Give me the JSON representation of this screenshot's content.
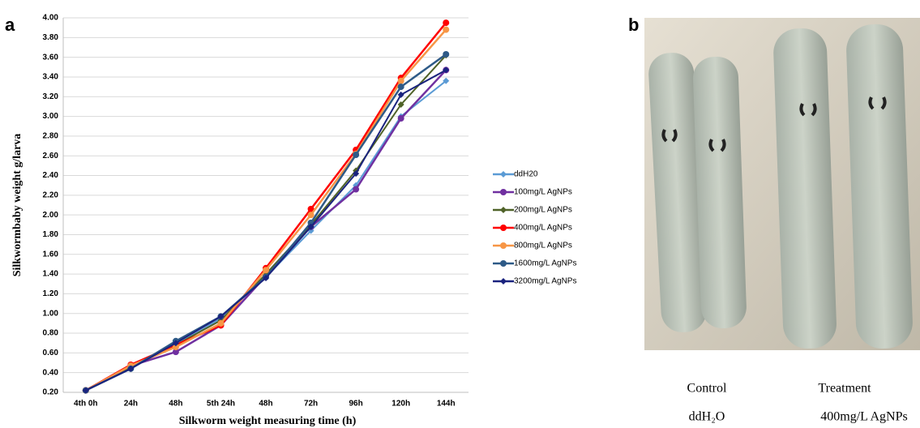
{
  "chart_data": {
    "type": "line",
    "panel_label": "a",
    "xlabel": "Silkworm weight measuring time (h)",
    "ylabel": "Silkwormbaby weight g/larva",
    "categories": [
      "4th 0h",
      "24h",
      "48h",
      "5th 24h",
      "48h",
      "72h",
      "96h",
      "120h",
      "144h"
    ],
    "ylim": [
      0.2,
      4.0
    ],
    "yticks": [
      {
        "value": 0.2,
        "label": "0.20"
      },
      {
        "value": 0.4,
        "label": "0.40"
      },
      {
        "value": 0.6,
        "label": "0.60"
      },
      {
        "value": 0.8,
        "label": "0.80"
      },
      {
        "value": 1.0,
        "label": "1.00"
      },
      {
        "value": 1.2,
        "label": "1.20"
      },
      {
        "value": 1.4,
        "label": "1.40"
      },
      {
        "value": 1.6,
        "label": "1.60"
      },
      {
        "value": 1.8,
        "label": "1.80"
      },
      {
        "value": 2.0,
        "label": "2.00"
      },
      {
        "value": 2.2,
        "label": "2.20"
      },
      {
        "value": 2.4,
        "label": "2.40"
      },
      {
        "value": 2.6,
        "label": "2.60"
      },
      {
        "value": 2.8,
        "label": "2.80"
      },
      {
        "value": 3.0,
        "label": "3.00"
      },
      {
        "value": 3.2,
        "label": "3.20"
      },
      {
        "value": 3.4,
        "label": "3.40"
      },
      {
        "value": 3.6,
        "label": "3.60"
      },
      {
        "value": 3.8,
        "label": "3.80"
      },
      {
        "value": 4.0,
        "label": "4.00"
      }
    ],
    "grid": true,
    "legend": "right",
    "series": [
      {
        "name": "ddH20",
        "color": "#5b9bd5",
        "marker": "diamond",
        "values": [
          0.22,
          0.45,
          0.68,
          0.95,
          1.37,
          1.84,
          2.3,
          3.0,
          3.36
        ]
      },
      {
        "name": "100mg/L AgNPs",
        "color": "#7030a0",
        "marker": "circle",
        "values": [
          0.22,
          0.47,
          0.61,
          0.88,
          1.38,
          1.88,
          2.26,
          2.98,
          3.47
        ]
      },
      {
        "name": "200mg/L AgNPs",
        "color": "#4f6228",
        "marker": "diamond",
        "values": [
          0.22,
          0.46,
          0.68,
          0.93,
          1.4,
          1.9,
          2.45,
          3.12,
          3.62
        ]
      },
      {
        "name": "400mg/L AgNPs",
        "color": "#ff0000",
        "marker": "circle",
        "values": [
          0.22,
          0.48,
          0.68,
          0.88,
          1.46,
          2.06,
          2.66,
          3.39,
          3.95
        ]
      },
      {
        "name": "800mg/L AgNPs",
        "color": "#f79646",
        "marker": "circle",
        "values": [
          0.22,
          0.47,
          0.66,
          0.9,
          1.44,
          2.0,
          2.62,
          3.36,
          3.88
        ]
      },
      {
        "name": "1600mg/L AgNPs",
        "color": "#2e5a87",
        "marker": "circle",
        "values": [
          0.22,
          0.44,
          0.72,
          0.97,
          1.37,
          1.92,
          2.61,
          3.3,
          3.63
        ]
      },
      {
        "name": "3200mg/L AgNPs",
        "color": "#1a237e",
        "marker": "diamond",
        "values": [
          0.22,
          0.44,
          0.7,
          0.97,
          1.36,
          1.88,
          2.42,
          3.22,
          3.47
        ]
      }
    ]
  },
  "photo_panel": {
    "panel_label": "b",
    "captions": [
      {
        "group": "Control",
        "treatment": "ddH₂O"
      },
      {
        "group": "Treatment",
        "treatment": "400mg/L AgNPs"
      }
    ]
  }
}
